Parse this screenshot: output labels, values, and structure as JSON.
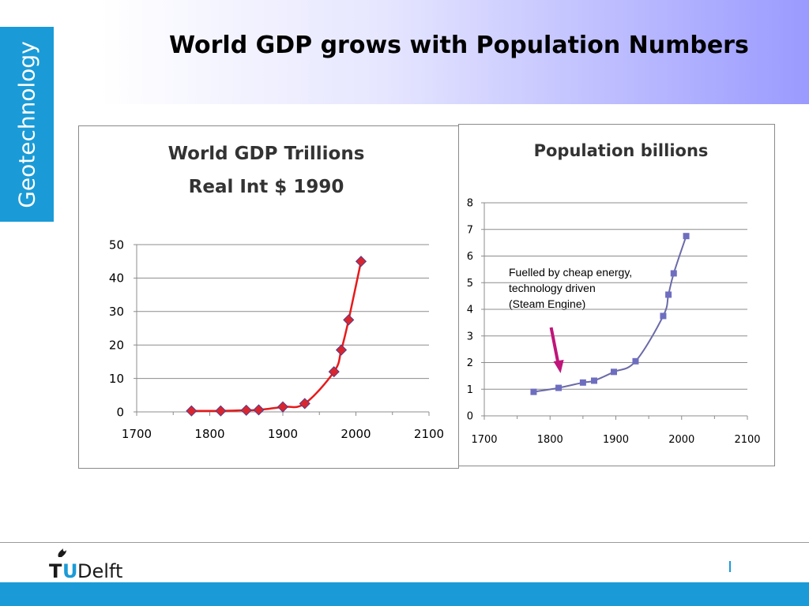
{
  "slide": {
    "title": "World GDP grows with Population Numbers",
    "side_tab": "Geotechnology",
    "logo_text": "TUDelft"
  },
  "colors": {
    "accent_blue": "#1a9bd7",
    "gdp_series": "#e8191a",
    "gdp_marker_fill": "#d9262e",
    "gdp_marker_edge": "#3a3a9a",
    "pop_series": "#6a6aa8",
    "pop_marker": "#6e6ec0",
    "arrow": "#c0157a"
  },
  "chart_data": [
    {
      "type": "line",
      "title": "World GDP Trillions",
      "subtitle": "Real Int $ 1990",
      "xlabel": "",
      "ylabel": "",
      "xlim": [
        1700,
        2100
      ],
      "ylim": [
        0,
        50
      ],
      "x_ticks": [
        "1700",
        "1800",
        "1900",
        "2000",
        "2100"
      ],
      "y_ticks": [
        "0",
        "10",
        "20",
        "30",
        "40",
        "50"
      ],
      "grid": true,
      "series": [
        {
          "marker": "diamond",
          "smooth": true,
          "points": [
            {
              "x": 1775,
              "y": 0.3
            },
            {
              "x": 1815,
              "y": 0.3
            },
            {
              "x": 1850,
              "y": 0.5
            },
            {
              "x": 1867,
              "y": 0.6
            },
            {
              "x": 1900,
              "y": 1.5
            },
            {
              "x": 1930,
              "y": 2.5
            },
            {
              "x": 1970,
              "y": 12
            },
            {
              "x": 1980,
              "y": 18.5
            },
            {
              "x": 1990,
              "y": 27.5
            },
            {
              "x": 2007,
              "y": 45
            }
          ]
        }
      ]
    },
    {
      "type": "line",
      "title": "Population billions",
      "xlabel": "",
      "ylabel": "",
      "xlim": [
        1700,
        2100
      ],
      "ylim": [
        0,
        8
      ],
      "x_ticks": [
        "1700",
        "1800",
        "1900",
        "2000",
        "2100"
      ],
      "y_ticks": [
        "0",
        "1",
        "2",
        "3",
        "4",
        "5",
        "6",
        "7",
        "8"
      ],
      "grid": true,
      "series": [
        {
          "marker": "square",
          "smooth": true,
          "points": [
            {
              "x": 1775,
              "y": 0.9
            },
            {
              "x": 1813,
              "y": 1.05
            },
            {
              "x": 1850,
              "y": 1.25
            },
            {
              "x": 1867,
              "y": 1.32
            },
            {
              "x": 1897,
              "y": 1.65
            },
            {
              "x": 1930,
              "y": 2.05
            },
            {
              "x": 1972,
              "y": 3.75
            },
            {
              "x": 1980,
              "y": 4.55
            },
            {
              "x": 1988,
              "y": 5.35
            },
            {
              "x": 2007,
              "y": 6.75
            }
          ]
        }
      ],
      "annotation": {
        "lines": [
          "Fuelled by cheap energy,",
          "technology driven",
          "(Steam Engine)"
        ],
        "arrow_points_to_x": 1810
      }
    }
  ]
}
